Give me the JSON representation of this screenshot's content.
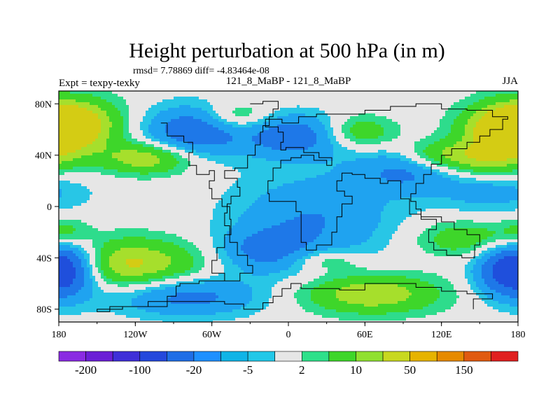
{
  "chart_data": {
    "type": "heatmap",
    "title": "Height perturbation at 500 hPa (in m)",
    "stats_line": "rmsd= 7.78869 diff= -4.83464e-08",
    "left_label": "Expt = texpy-texky",
    "center_label": "121_8_MaBP - 121_8_MaBP",
    "right_label": "JJA",
    "x_range": [
      -180,
      180
    ],
    "y_range": [
      -90,
      90
    ],
    "x_ticks": [
      {
        "value": -180,
        "label": "180"
      },
      {
        "value": -120,
        "label": "120W"
      },
      {
        "value": -60,
        "label": "60W"
      },
      {
        "value": 0,
        "label": "0"
      },
      {
        "value": 60,
        "label": "60E"
      },
      {
        "value": 120,
        "label": "120E"
      },
      {
        "value": 180,
        "label": "180"
      }
    ],
    "y_ticks": [
      {
        "value": 80,
        "label": "80N"
      },
      {
        "value": 40,
        "label": "40N"
      },
      {
        "value": 0,
        "label": "0"
      },
      {
        "value": -40,
        "label": "40S"
      },
      {
        "value": -80,
        "label": "80S"
      }
    ],
    "colorbar": {
      "colors": [
        "#8a2be2",
        "#6b1fd6",
        "#3f2fd8",
        "#2448dc",
        "#1f6ee6",
        "#1e90ff",
        "#10b4e6",
        "#22c8e8",
        "#e6e6e6",
        "#2ee08a",
        "#3ed62a",
        "#90e030",
        "#c8d820",
        "#e6b300",
        "#e68a00",
        "#e05a10",
        "#e02020"
      ],
      "labels": [
        {
          "after_box": 1,
          "text": "-200"
        },
        {
          "after_box": 3,
          "text": "-100"
        },
        {
          "after_box": 5,
          "text": "-20"
        },
        {
          "after_box": 7,
          "text": "-5"
        },
        {
          "after_box": 9,
          "text": "2"
        },
        {
          "after_box": 11,
          "text": "10"
        },
        {
          "after_box": 13,
          "text": "50"
        },
        {
          "after_box": 15,
          "text": "150"
        }
      ]
    },
    "field_blobs": [
      {
        "lon": -170,
        "lat": 65,
        "amp": 12,
        "sx": 28,
        "sy": 14
      },
      {
        "lon": 170,
        "lat": 58,
        "amp": 11,
        "sx": 24,
        "sy": 14
      },
      {
        "lon": -110,
        "lat": 38,
        "amp": 10,
        "sx": 26,
        "sy": 9
      },
      {
        "lon": -75,
        "lat": 58,
        "amp": -11,
        "sx": 28,
        "sy": 14
      },
      {
        "lon": 5,
        "lat": 55,
        "amp": -10,
        "sx": 28,
        "sy": 12
      },
      {
        "lon": -40,
        "lat": 70,
        "amp": 6,
        "sx": 18,
        "sy": 8
      },
      {
        "lon": 55,
        "lat": 58,
        "amp": 7,
        "sx": 20,
        "sy": 9
      },
      {
        "lon": 95,
        "lat": 28,
        "amp": -8,
        "sx": 30,
        "sy": 12
      },
      {
        "lon": 150,
        "lat": 35,
        "amp": 8,
        "sx": 28,
        "sy": 10
      },
      {
        "lon": 115,
        "lat": 40,
        "amp": 6,
        "sx": 20,
        "sy": 8
      },
      {
        "lon": 160,
        "lat": 12,
        "amp": -5,
        "sx": 30,
        "sy": 12
      },
      {
        "lon": 20,
        "lat": -10,
        "amp": -7,
        "sx": 45,
        "sy": 25
      },
      {
        "lon": -20,
        "lat": -35,
        "amp": -7,
        "sx": 25,
        "sy": 12
      },
      {
        "lon": -125,
        "lat": -45,
        "amp": 11,
        "sx": 40,
        "sy": 14
      },
      {
        "lon": -172,
        "lat": -48,
        "amp": -13,
        "sx": 18,
        "sy": 16
      },
      {
        "lon": 170,
        "lat": -50,
        "amp": -12,
        "sx": 18,
        "sy": 14
      },
      {
        "lon": -80,
        "lat": -70,
        "amp": -9,
        "sx": 40,
        "sy": 11
      },
      {
        "lon": 65,
        "lat": -68,
        "amp": 10,
        "sx": 38,
        "sy": 11
      },
      {
        "lon": 140,
        "lat": -25,
        "amp": 6,
        "sx": 30,
        "sy": 10
      },
      {
        "lon": -175,
        "lat": -20,
        "amp": 5,
        "sx": 14,
        "sy": 8
      },
      {
        "lon": 30,
        "lat": -42,
        "amp": 5,
        "sx": 20,
        "sy": 6
      }
    ],
    "map_outline": [
      [
        -30,
        80
      ],
      [
        -20,
        82
      ],
      [
        -10,
        82
      ],
      [
        -8,
        76
      ],
      [
        -12,
        70
      ],
      [
        -15,
        63
      ],
      [
        -20,
        58
      ],
      [
        -22,
        48
      ],
      [
        -26,
        40
      ],
      [
        -32,
        30
      ],
      [
        -42,
        28
      ],
      [
        -50,
        22
      ],
      [
        -40,
        15
      ],
      [
        -38,
        8
      ],
      [
        -45,
        2
      ],
      [
        -48,
        -5
      ],
      [
        -50,
        -15
      ],
      [
        -46,
        -28
      ],
      [
        -40,
        -38
      ],
      [
        -32,
        -46
      ],
      [
        -28,
        -52
      ],
      [
        -38,
        -58
      ],
      [
        -55,
        -58
      ],
      [
        -70,
        -60
      ],
      [
        -85,
        -62
      ],
      [
        -88,
        -70
      ],
      [
        -95,
        -78
      ],
      [
        -130,
        -80
      ],
      [
        -150,
        -82
      ],
      [
        -140,
        -78
      ],
      [
        -110,
        -74
      ],
      [
        -70,
        -74
      ],
      [
        -50,
        -76
      ],
      [
        -35,
        -80
      ],
      [
        -20,
        -75
      ],
      [
        -12,
        -70
      ],
      [
        -5,
        -64
      ],
      [
        2,
        -60
      ],
      [
        10,
        -64
      ],
      [
        40,
        -65
      ],
      [
        60,
        -60
      ],
      [
        80,
        -60
      ],
      [
        100,
        -63
      ],
      [
        120,
        -66
      ],
      [
        140,
        -68
      ],
      [
        160,
        -72
      ],
      [
        145,
        -80
      ]
    ],
    "map_outline_2": [
      [
        -100,
        65
      ],
      [
        -95,
        55
      ],
      [
        -82,
        50
      ],
      [
        -75,
        42
      ],
      [
        -78,
        32
      ],
      [
        -72,
        25
      ],
      [
        -62,
        28
      ],
      [
        -58,
        20
      ],
      [
        -62,
        14
      ],
      [
        -60,
        6
      ],
      [
        -52,
        0
      ],
      [
        -46,
        -10
      ],
      [
        -45,
        -22
      ],
      [
        -50,
        -32
      ],
      [
        -56,
        -42
      ],
      [
        -60,
        -52
      ],
      [
        -50,
        -58
      ]
    ],
    "map_outline_3": [
      [
        -18,
        68
      ],
      [
        -5,
        65
      ],
      [
        8,
        70
      ],
      [
        22,
        72
      ],
      [
        40,
        72
      ],
      [
        60,
        75
      ],
      [
        80,
        78
      ],
      [
        100,
        80
      ],
      [
        120,
        76
      ],
      [
        140,
        75
      ],
      [
        160,
        70
      ],
      [
        172,
        68
      ],
      [
        168,
        60
      ],
      [
        158,
        55
      ],
      [
        150,
        50
      ],
      [
        140,
        45
      ],
      [
        128,
        40
      ],
      [
        120,
        33
      ],
      [
        112,
        25
      ],
      [
        106,
        18
      ],
      [
        100,
        10
      ],
      [
        96,
        4
      ],
      [
        100,
        -2
      ],
      [
        104,
        -8
      ],
      [
        120,
        -12
      ],
      [
        130,
        -18
      ],
      [
        140,
        -22
      ],
      [
        150,
        -30
      ],
      [
        146,
        -40
      ],
      [
        136,
        -38
      ],
      [
        124,
        -34
      ],
      [
        114,
        -28
      ],
      [
        110,
        -18
      ],
      [
        116,
        -10
      ],
      [
        104,
        -6
      ],
      [
        95,
        6
      ],
      [
        88,
        20
      ],
      [
        78,
        18
      ],
      [
        72,
        22
      ],
      [
        60,
        25
      ],
      [
        50,
        26
      ],
      [
        42,
        20
      ],
      [
        38,
        12
      ],
      [
        44,
        8
      ],
      [
        50,
        2
      ],
      [
        42,
        -8
      ],
      [
        38,
        -20
      ],
      [
        34,
        -30
      ],
      [
        22,
        -34
      ],
      [
        14,
        -28
      ],
      [
        10,
        -16
      ],
      [
        10,
        -4
      ],
      [
        6,
        4
      ],
      [
        -6,
        4
      ],
      [
        -15,
        10
      ],
      [
        -16,
        20
      ],
      [
        -12,
        30
      ],
      [
        -6,
        36
      ],
      [
        2,
        38
      ],
      [
        10,
        40
      ],
      [
        20,
        36
      ],
      [
        30,
        32
      ],
      [
        34,
        38
      ],
      [
        24,
        42
      ],
      [
        12,
        46
      ],
      [
        -2,
        44
      ],
      [
        -6,
        50
      ],
      [
        -4,
        58
      ],
      [
        -8,
        62
      ],
      [
        -18,
        68
      ]
    ]
  }
}
